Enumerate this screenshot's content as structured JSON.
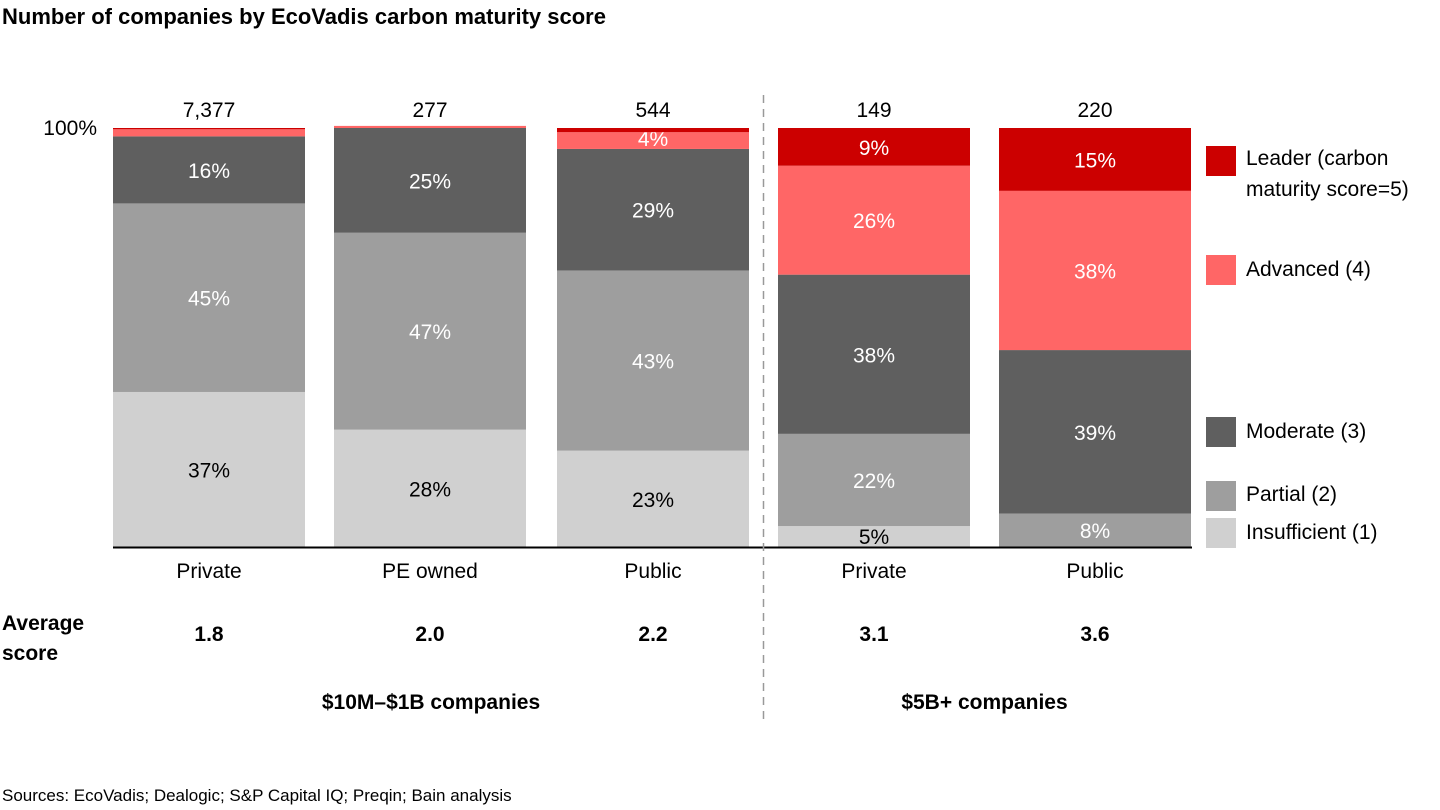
{
  "title": "Number of companies by EcoVadis carbon maturity score",
  "source": "Sources: EcoVadis; Dealogic; S&P Capital IQ; Preqin; Bain analysis",
  "chart_data": {
    "type": "stacked-bar-100",
    "title": "Number of companies by EcoVadis carbon maturity score",
    "y_tick_label": "100%",
    "ylim": [
      0,
      100
    ],
    "categories": [
      "Private",
      "PE owned",
      "Public",
      "Private",
      "Public"
    ],
    "totals": [
      "7,377",
      "277",
      "544",
      "149",
      "220"
    ],
    "average_score_label": "Average score",
    "average_scores": [
      "1.8",
      "2.0",
      "2.2",
      "3.1",
      "3.6"
    ],
    "groups": [
      {
        "label": "$10M–$1B companies",
        "categories": [
          0,
          1,
          2
        ]
      },
      {
        "label": "$5B+ companies",
        "categories": [
          3,
          4
        ]
      }
    ],
    "series": [
      {
        "name": "Insufficient (1)",
        "color": "#D0D0D0",
        "label_color": "#000000",
        "values": [
          37,
          28,
          23,
          5,
          0
        ],
        "labels": [
          "37%",
          "28%",
          "23%",
          "5%",
          null
        ]
      },
      {
        "name": "Partial (2)",
        "color": "#9E9E9E",
        "label_color": "#FFFFFF",
        "values": [
          45,
          47,
          43,
          22,
          8
        ],
        "labels": [
          "45%",
          "47%",
          "43%",
          "22%",
          "8%"
        ]
      },
      {
        "name": "Moderate (3)",
        "color": "#5F5F5F",
        "label_color": "#FFFFFF",
        "values": [
          16,
          25,
          29,
          38,
          39
        ],
        "labels": [
          "16%",
          "25%",
          "29%",
          "38%",
          "39%"
        ]
      },
      {
        "name": "Advanced (4)",
        "color": "#FF6666",
        "label_color": "#FFFFFF",
        "values": [
          1.7,
          0.5,
          4,
          26,
          38
        ],
        "labels": [
          null,
          null,
          "4%",
          "26%",
          "38%"
        ]
      },
      {
        "name": "Leader (carbon maturity score=5)",
        "color": "#CC0000",
        "label_color": "#FFFFFF",
        "values": [
          0.3,
          0,
          1,
          9,
          15
        ],
        "labels": [
          null,
          null,
          null,
          "9%",
          "15%"
        ]
      }
    ],
    "legend": {
      "placement": "right",
      "entries": [
        {
          "line1": "Leader (carbon",
          "line2": "maturity score=5)",
          "color": "#CC0000"
        },
        {
          "line1": "Advanced (4)",
          "color": "#FF6666"
        },
        {
          "line1": "Moderate (3)",
          "color": "#5F5F5F"
        },
        {
          "line1": "Partial (2)",
          "color": "#9E9E9E"
        },
        {
          "line1": "Insufficient (1)",
          "color": "#D0D0D0"
        }
      ]
    },
    "grid": false
  }
}
